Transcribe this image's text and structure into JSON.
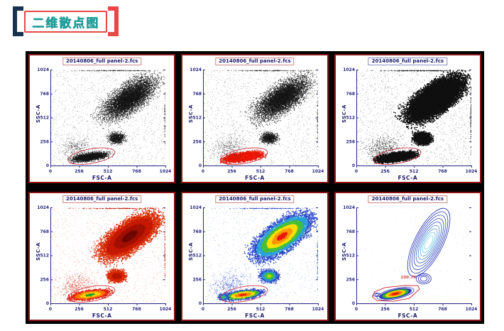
{
  "header": {
    "title": "二维散点图",
    "text_color": "#23a3a0",
    "box_border_color": "#e84747",
    "bracket_left_color": "#16324e",
    "bracket_right_color": "#e84747"
  },
  "board": {
    "background": "#000000",
    "panel_border": "#8c1414"
  },
  "chart_data": {
    "type": "scatter",
    "figure": "flow-cytometry-2d-dot-plots",
    "grid": {
      "rows": 2,
      "cols": 3
    },
    "shared": {
      "xlabel": "FSC-A",
      "ylabel": "SSC-A",
      "xlim": [
        0,
        1024
      ],
      "ylim": [
        0,
        1024
      ],
      "ticks": [
        0,
        256,
        512,
        768,
        1024
      ],
      "axis_color": "#26267e",
      "tick_text_color": "#26267e",
      "gate_color": "#cc2030",
      "title_text_color": "#1c1c6e"
    },
    "panels": [
      {
        "title": "20140806_full panel-2.fcs",
        "title_border": "#cc8888",
        "mode": "dots",
        "clusters": [
          {
            "cx": 700,
            "cy": 720,
            "rx": 330,
            "ry": 145,
            "angle": 42,
            "count": 6500,
            "size": 1,
            "alpha": 0.8,
            "palette": [
              "#151515"
            ]
          },
          {
            "cx": 585,
            "cy": 295,
            "rx": 82,
            "ry": 66,
            "angle": 0,
            "count": 900,
            "size": 1,
            "alpha": 0.8,
            "palette": [
              "#151515"
            ]
          },
          {
            "cx": 350,
            "cy": 95,
            "rx": 175,
            "ry": 48,
            "angle": 10,
            "count": 2400,
            "size": 1,
            "alpha": 0.9,
            "palette": [
              "#151515"
            ]
          },
          {
            "cx": 230,
            "cy": 190,
            "rx": 190,
            "ry": 150,
            "angle": 20,
            "count": 450,
            "size": 0.8,
            "alpha": 0.55,
            "palette": [
              "#151515"
            ]
          },
          {
            "cx": 580,
            "cy": 1016,
            "rx": 430,
            "ry": 5,
            "angle": 0,
            "count": 220,
            "size": 0.8,
            "alpha": 0.8,
            "palette": [
              "#151515"
            ]
          },
          {
            "cx": 1017,
            "cy": 500,
            "rx": 5,
            "ry": 360,
            "angle": 0,
            "count": 90,
            "size": 0.8,
            "alpha": 0.8,
            "palette": [
              "#151515"
            ]
          },
          {
            "uniform": true,
            "count": 1600,
            "size": 0.7,
            "alpha": 0.45,
            "palette": [
              "#151515"
            ]
          }
        ],
        "gate": {
          "cx": 365,
          "cy": 100,
          "rx": 212,
          "ry": 78,
          "angle": 10
        }
      },
      {
        "title": "20140806_full panel-2.fcs",
        "title_border": "#cc8888",
        "mode": "dots",
        "clusters": [
          {
            "cx": 700,
            "cy": 720,
            "rx": 330,
            "ry": 145,
            "angle": 42,
            "count": 6500,
            "size": 1,
            "alpha": 0.8,
            "palette": [
              "#151515"
            ]
          },
          {
            "cx": 585,
            "cy": 295,
            "rx": 82,
            "ry": 66,
            "angle": 0,
            "count": 900,
            "size": 1,
            "alpha": 0.8,
            "palette": [
              "#151515"
            ]
          },
          {
            "cx": 350,
            "cy": 95,
            "rx": 175,
            "ry": 48,
            "angle": 10,
            "count": 4800,
            "size": 1.3,
            "alpha": 0.9,
            "palette": [
              "#ee1808"
            ]
          },
          {
            "cx": 230,
            "cy": 190,
            "rx": 190,
            "ry": 150,
            "angle": 20,
            "count": 450,
            "size": 0.8,
            "alpha": 0.55,
            "palette": [
              "#151515"
            ]
          },
          {
            "cx": 580,
            "cy": 1016,
            "rx": 430,
            "ry": 5,
            "angle": 0,
            "count": 220,
            "size": 0.8,
            "alpha": 0.8,
            "palette": [
              "#151515"
            ]
          },
          {
            "cx": 1017,
            "cy": 500,
            "rx": 5,
            "ry": 360,
            "angle": 0,
            "count": 90,
            "size": 0.8,
            "alpha": 0.8,
            "palette": [
              "#151515"
            ]
          },
          {
            "uniform": true,
            "count": 1600,
            "size": 0.7,
            "alpha": 0.45,
            "palette": [
              "#151515"
            ]
          }
        ],
        "gate": {
          "cx": 365,
          "cy": 100,
          "rx": 212,
          "ry": 78,
          "angle": 10
        }
      },
      {
        "title": "20140806_full panel-2.fcs",
        "title_border": "#8890c4",
        "mode": "dots",
        "clusters": [
          {
            "cx": 700,
            "cy": 720,
            "rx": 330,
            "ry": 145,
            "angle": 42,
            "count": 17000,
            "size": 1.5,
            "alpha": 1,
            "palette": [
              "#101010"
            ]
          },
          {
            "cx": 585,
            "cy": 295,
            "rx": 82,
            "ry": 66,
            "angle": 0,
            "count": 2600,
            "size": 1.4,
            "alpha": 1,
            "palette": [
              "#101010"
            ]
          },
          {
            "cx": 350,
            "cy": 95,
            "rx": 175,
            "ry": 48,
            "angle": 10,
            "count": 5000,
            "size": 1.4,
            "alpha": 1,
            "palette": [
              "#101010"
            ]
          },
          {
            "cx": 230,
            "cy": 190,
            "rx": 190,
            "ry": 150,
            "angle": 20,
            "count": 500,
            "size": 0.9,
            "alpha": 0.6,
            "palette": [
              "#151515"
            ]
          },
          {
            "cx": 580,
            "cy": 1016,
            "rx": 430,
            "ry": 5,
            "angle": 0,
            "count": 260,
            "size": 0.9,
            "alpha": 0.85,
            "palette": [
              "#151515"
            ]
          },
          {
            "cx": 1017,
            "cy": 500,
            "rx": 5,
            "ry": 360,
            "angle": 0,
            "count": 110,
            "size": 0.9,
            "alpha": 0.85,
            "palette": [
              "#151515"
            ]
          },
          {
            "uniform": true,
            "count": 1800,
            "size": 0.7,
            "alpha": 0.5,
            "palette": [
              "#151515"
            ]
          }
        ],
        "gate": {
          "cx": 365,
          "cy": 100,
          "rx": 212,
          "ry": 78,
          "angle": 10
        }
      },
      {
        "title": "20140806_full panel-2.fcs",
        "title_border": "#cc8888",
        "mode": "dots",
        "clusters": [
          {
            "cx": 700,
            "cy": 720,
            "rx": 330,
            "ry": 145,
            "angle": 42,
            "count": 13000,
            "size": 1.4,
            "alpha": 0.9,
            "palette": [
              "#6e0800",
              "#a01000",
              "#c41800",
              "#d82800"
            ]
          },
          {
            "cx": 585,
            "cy": 295,
            "rx": 82,
            "ry": 66,
            "angle": 0,
            "count": 2200,
            "size": 1.3,
            "alpha": 0.9,
            "palette": [
              "#b81400",
              "#d82800"
            ]
          },
          {
            "cx": 350,
            "cy": 95,
            "rx": 175,
            "ry": 48,
            "angle": 10,
            "count": 3400,
            "size": 1.3,
            "alpha": 0.95,
            "palette": [
              "#18a030",
              "#ffd800",
              "#ff8000",
              "#e02010"
            ]
          },
          {
            "cx": 230,
            "cy": 190,
            "rx": 190,
            "ry": 150,
            "angle": 20,
            "count": 420,
            "size": 0.9,
            "alpha": 0.6,
            "palette": [
              "#d03018"
            ]
          },
          {
            "cx": 580,
            "cy": 1016,
            "rx": 430,
            "ry": 5,
            "angle": 0,
            "count": 200,
            "size": 0.9,
            "alpha": 0.85,
            "palette": [
              "#c41800"
            ]
          },
          {
            "cx": 1017,
            "cy": 500,
            "rx": 5,
            "ry": 360,
            "angle": 0,
            "count": 90,
            "size": 0.9,
            "alpha": 0.8,
            "palette": [
              "#c41800"
            ]
          },
          {
            "uniform": true,
            "count": 1200,
            "size": 0.7,
            "alpha": 0.55,
            "palette": [
              "#d84030"
            ]
          }
        ],
        "gate": {
          "cx": 365,
          "cy": 100,
          "rx": 212,
          "ry": 78,
          "angle": 10
        }
      },
      {
        "title": "20140806_full panel-2.fcs",
        "title_border": "#cc8888",
        "mode": "dots",
        "clusters": [
          {
            "cx": 700,
            "cy": 720,
            "rx": 330,
            "ry": 145,
            "angle": 42,
            "count": 11000,
            "size": 1.4,
            "alpha": 0.95,
            "palette": [
              "#e81808",
              "#ff9800",
              "#ffe000",
              "#48c038",
              "#28a0d8",
              "#2848c8"
            ]
          },
          {
            "cx": 585,
            "cy": 295,
            "rx": 82,
            "ry": 66,
            "angle": 0,
            "count": 1900,
            "size": 1.3,
            "alpha": 0.95,
            "palette": [
              "#b8d818",
              "#48c038",
              "#2898d0",
              "#2848c8"
            ]
          },
          {
            "cx": 350,
            "cy": 95,
            "rx": 175,
            "ry": 48,
            "angle": 10,
            "count": 3000,
            "size": 1.3,
            "alpha": 0.95,
            "palette": [
              "#e81808",
              "#ff8800",
              "#ffe000",
              "#48c038",
              "#2848c8"
            ]
          },
          {
            "cx": 175,
            "cy": 70,
            "rx": 45,
            "ry": 32,
            "angle": 0,
            "count": 500,
            "size": 1.2,
            "alpha": 0.95,
            "palette": [
              "#48c038",
              "#2898d0",
              "#2848c8"
            ]
          },
          {
            "cx": 230,
            "cy": 200,
            "rx": 190,
            "ry": 150,
            "angle": 20,
            "count": 420,
            "size": 0.9,
            "alpha": 0.6,
            "palette": [
              "#2848c8"
            ]
          },
          {
            "cx": 580,
            "cy": 1016,
            "rx": 430,
            "ry": 5,
            "angle": 0,
            "count": 200,
            "size": 0.9,
            "alpha": 0.85,
            "palette": [
              "#2848c8"
            ]
          },
          {
            "cx": 1017,
            "cy": 500,
            "rx": 5,
            "ry": 360,
            "angle": 0,
            "count": 80,
            "size": 0.9,
            "alpha": 0.8,
            "palette": [
              "#2848c8"
            ]
          },
          {
            "uniform": true,
            "count": 900,
            "size": 0.7,
            "alpha": 0.5,
            "palette": [
              "#3858c8"
            ]
          }
        ],
        "gate": {
          "cx": 365,
          "cy": 100,
          "rx": 212,
          "ry": 78,
          "angle": 10
        }
      },
      {
        "title": "20140806_full panel-2.fcs",
        "title_border": "#cc8888",
        "mode": "contour",
        "stat_label": "100.76",
        "stat_color": "#cc2030",
        "contours": [
          {
            "cx": 645,
            "cy": 650,
            "rx": 335,
            "ry": 150,
            "angle": 63,
            "levels": 9,
            "shrink": 0.1,
            "strokes": [
              "#2834b0",
              "#2834b0",
              "#3048c0",
              "#3048c0",
              "#3860c8",
              "#4880d0",
              "#58a0d8",
              "#68c0e0",
              "#80d4e8"
            ]
          },
          {
            "cx": 600,
            "cy": 262,
            "rx": 66,
            "ry": 56,
            "angle": 0,
            "levels": 3,
            "shrink": 0.27,
            "strokes": [
              "#2834b0",
              "#2834b0",
              "#2834b0"
            ]
          },
          {
            "cx": 182,
            "cy": 92,
            "rx": 32,
            "ry": 20,
            "angle": 0,
            "levels": 2,
            "shrink": 0.45,
            "strokes": [
              "#2834b0",
              "#2834b0"
            ]
          }
        ],
        "rings": {
          "cx": 348,
          "cy": 102,
          "rx": 168,
          "ry": 55,
          "angle": 12,
          "bands": [
            {
              "f": 1.0,
              "stroke": "#2a38b8"
            },
            {
              "f": 0.88,
              "fill": "#2a38b8"
            },
            {
              "f": 0.72,
              "fill": "#38b038"
            },
            {
              "f": 0.55,
              "fill": "#ffd800"
            },
            {
              "f": 0.38,
              "fill": "#ff7800"
            },
            {
              "f": 0.22,
              "fill": "#e01808"
            }
          ]
        },
        "gate_poly": [
          [
            140,
            70
          ],
          [
            185,
            28
          ],
          [
            330,
            22
          ],
          [
            470,
            52
          ],
          [
            562,
            150
          ],
          [
            548,
            188
          ],
          [
            430,
            190
          ],
          [
            255,
            168
          ],
          [
            162,
            122
          ]
        ],
        "clusters": [
          {
            "uniform": true,
            "count": 150,
            "size": 0.6,
            "alpha": 0.4,
            "palette": [
              "#3858c8"
            ]
          }
        ]
      }
    ]
  }
}
